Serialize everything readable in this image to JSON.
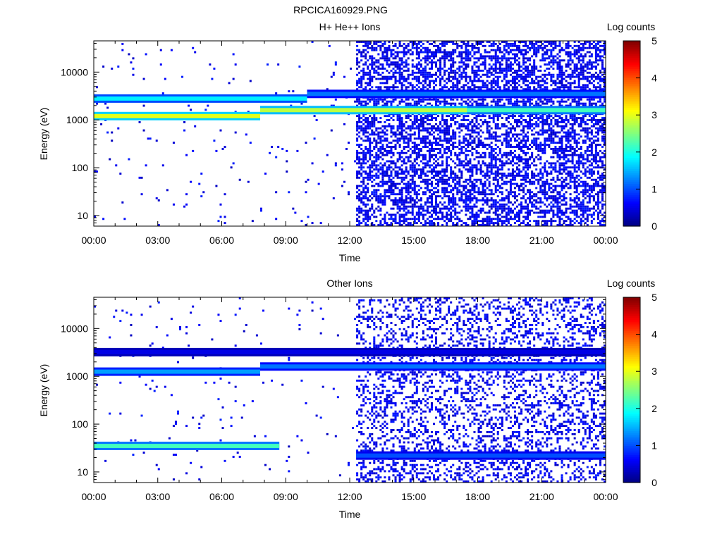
{
  "figure": {
    "title": "RPCICA160929.PNG"
  },
  "colorbar": {
    "label": "Log counts",
    "ticks": [
      "0",
      "1",
      "2",
      "3",
      "4",
      "5"
    ],
    "range": [
      0,
      5
    ],
    "colormap": "jet"
  },
  "chart_data": [
    {
      "type": "heatmap",
      "title": "H+ He++ Ions",
      "xlabel": "Time",
      "ylabel": "Energy (eV)",
      "x_ticks": [
        "00:00",
        "03:00",
        "06:00",
        "09:00",
        "12:00",
        "15:00",
        "18:00",
        "21:00",
        "00:00"
      ],
      "xlim_hours": [
        0,
        24
      ],
      "y_scale": "log",
      "ylim": [
        6,
        45000
      ],
      "y_ticks": [
        "10",
        "100",
        "1000",
        "10000"
      ],
      "bands": [
        {
          "t_start": 0.0,
          "t_end": 7.8,
          "energy": 1200,
          "log_counts": 3.0
        },
        {
          "t_start": 7.8,
          "t_end": 17.5,
          "energy": 1600,
          "log_counts": 2.8
        },
        {
          "t_start": 17.5,
          "t_end": 24.0,
          "energy": 1600,
          "log_counts": 2.2
        },
        {
          "t_start": 0.0,
          "t_end": 10.0,
          "energy": 2800,
          "log_counts": 1.8
        },
        {
          "t_start": 10.0,
          "t_end": 24.0,
          "energy": 3500,
          "log_counts": 1.2
        }
      ],
      "background_noise": {
        "before_hours": 12.3,
        "density_before": 0.015,
        "density_after": 0.55,
        "log_counts": 0.3
      }
    },
    {
      "type": "heatmap",
      "title": "Other Ions",
      "xlabel": "Time",
      "ylabel": "Energy (eV)",
      "x_ticks": [
        "00:00",
        "03:00",
        "06:00",
        "09:00",
        "12:00",
        "15:00",
        "18:00",
        "21:00",
        "00:00"
      ],
      "xlim_hours": [
        0,
        24
      ],
      "y_scale": "log",
      "ylim": [
        6,
        45000
      ],
      "y_ticks": [
        "10",
        "100",
        "1000",
        "10000"
      ],
      "bands": [
        {
          "t_start": 0.0,
          "t_end": 7.8,
          "energy": 1250,
          "log_counts": 1.4
        },
        {
          "t_start": 7.8,
          "t_end": 24.0,
          "energy": 1600,
          "log_counts": 1.2
        },
        {
          "t_start": 0.0,
          "t_end": 24.0,
          "energy": 3200,
          "log_counts": 0.5
        },
        {
          "t_start": 0.0,
          "t_end": 8.7,
          "energy": 35,
          "log_counts": 2.2
        },
        {
          "t_start": 12.3,
          "t_end": 24.0,
          "energy": 22,
          "log_counts": 1.0
        }
      ],
      "background_noise": {
        "before_hours": 12.3,
        "density_before": 0.015,
        "density_after": 0.3,
        "log_counts": 0.3
      }
    }
  ]
}
